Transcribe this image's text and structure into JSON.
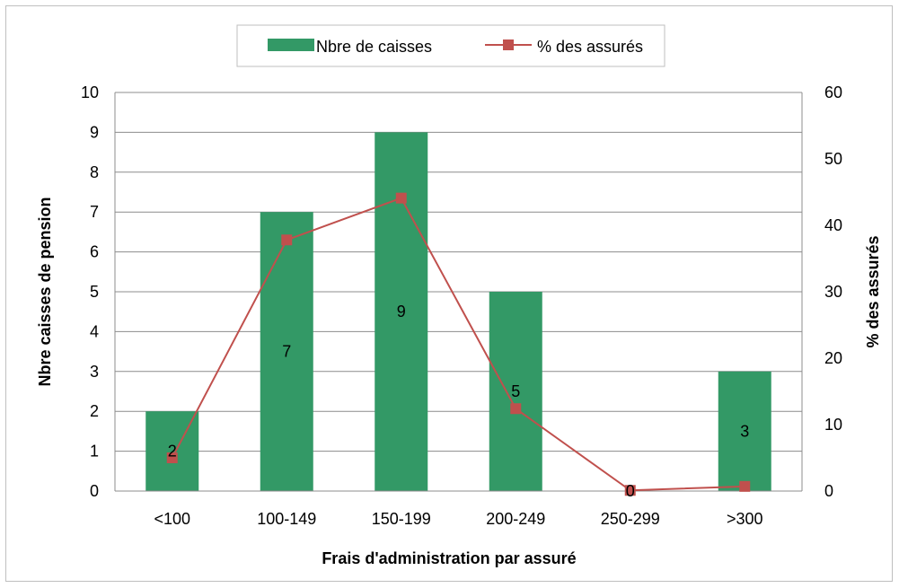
{
  "chart_data": {
    "type": "bar",
    "categories": [
      "<100",
      "100-149",
      "150-199",
      "200-249",
      "250-299",
      ">300"
    ],
    "series": [
      {
        "name": "Nbre de caisses",
        "type": "bar",
        "axis": "left",
        "color": "#339966",
        "values": [
          2,
          7,
          9,
          5,
          0,
          3
        ],
        "data_labels": [
          "2",
          "7",
          "9",
          "5",
          "0",
          "3"
        ]
      },
      {
        "name": "% des assurés",
        "type": "line",
        "axis": "right",
        "color": "#c0504d",
        "marker": "square",
        "values": [
          5,
          37.8,
          44.1,
          12.4,
          0.1,
          0.7
        ]
      }
    ],
    "xlabel": "Frais d'administration par assuré",
    "ylabel": "Nbre caisses de pension",
    "y2label": "% des assurés",
    "ylim": [
      0,
      10
    ],
    "y2lim": [
      0,
      60
    ],
    "yticks": [
      "0",
      "1",
      "2",
      "3",
      "4",
      "5",
      "6",
      "7",
      "8",
      "9",
      "10"
    ],
    "y2ticks": [
      "0",
      "10",
      "20",
      "30",
      "40",
      "50",
      "60"
    ],
    "grid": true,
    "legend_position": "top"
  }
}
